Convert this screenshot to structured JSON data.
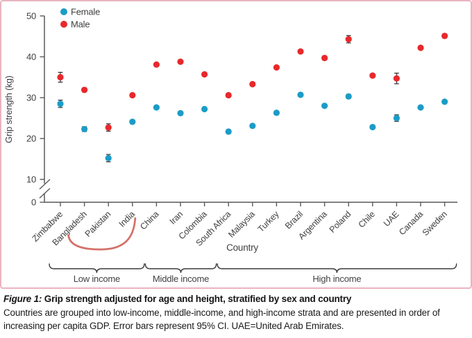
{
  "figure": {
    "caption_label": "Figure 1:",
    "caption_title": " Grip strength adjusted for age and height, stratified by sex and country",
    "caption_body": "Countries are grouped into low-income, middle-income, and high-income strata and are presented in order of increasing per capita GDP. Error bars represent 95% CI. UAE=United Arab Emirates."
  },
  "chart_data": {
    "type": "scatter",
    "title": "",
    "xlabel": "Country",
    "ylabel": "Grip strength (kg)",
    "ylim": [
      0,
      50
    ],
    "yticks": [
      0,
      10,
      20,
      30,
      40,
      50
    ],
    "y_axis_break_between": [
      0,
      10
    ],
    "grid": false,
    "legend_position": "top-left",
    "categories": [
      "Zimbabwe",
      "Bangladesh",
      "Pakistan",
      "India",
      "China",
      "Iran",
      "Colombia",
      "South Africa",
      "Malaysia",
      "Turkey",
      "Brazil",
      "Argentina",
      "Poland",
      "Chile",
      "UAE",
      "Canada",
      "Sweden"
    ],
    "series": [
      {
        "name": "Female",
        "color": "#1b9cc6",
        "values": [
          28.5,
          22.3,
          15.2,
          24.1,
          27.6,
          26.2,
          27.2,
          21.7,
          23.1,
          26.3,
          30.7,
          28.0,
          30.3,
          22.8,
          25.0,
          27.6,
          29.0
        ],
        "ci_half_width": [
          0.9,
          0.6,
          0.9,
          0.4,
          0.4,
          0.4,
          0.4,
          0.5,
          0.4,
          0.4,
          0.4,
          0.4,
          0.5,
          0.4,
          0.8,
          0.4,
          0.4
        ]
      },
      {
        "name": "Male",
        "color": "#e8282b",
        "values": [
          35.0,
          31.9,
          22.7,
          30.6,
          38.1,
          38.8,
          35.7,
          30.6,
          33.3,
          37.4,
          41.3,
          39.7,
          44.3,
          35.4,
          34.7,
          42.2,
          45.1
        ],
        "ci_half_width": [
          1.2,
          0.5,
          0.9,
          0.4,
          0.4,
          0.4,
          0.4,
          0.5,
          0.4,
          0.4,
          0.3,
          0.5,
          0.9,
          0.4,
          1.3,
          0.4,
          0.5
        ]
      }
    ],
    "income_groups": [
      {
        "label": "Low income",
        "from": "Zimbabwe",
        "to": "India"
      },
      {
        "label": "Middle income",
        "from": "China",
        "to": "Colombia"
      },
      {
        "label": "High income",
        "from": "South Africa",
        "to": "Sweden"
      }
    ],
    "annotation": {
      "type": "hand-drawn-underline",
      "color": "#cf6058",
      "countries_marked": [
        "Bangladesh",
        "Pakistan",
        "India"
      ]
    }
  },
  "colors": {
    "panel_border": "#eab4c0",
    "axis": "#58595b",
    "error_bar": "#231f20",
    "text": "#414042"
  }
}
